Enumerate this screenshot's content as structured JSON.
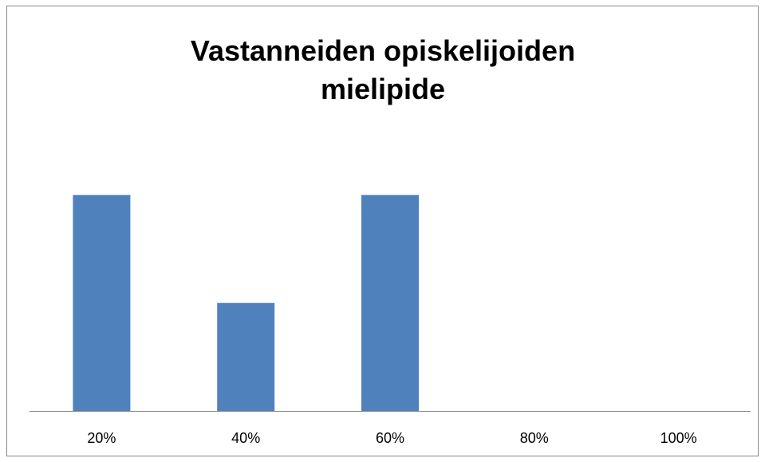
{
  "chart_data": {
    "type": "bar",
    "title": "Vastanneiden opiskelijoiden mielipide",
    "categories": [
      "20%",
      "40%",
      "60%",
      "80%",
      "100%"
    ],
    "values": [
      2,
      1,
      2,
      0,
      0
    ],
    "color": "#4f81bd",
    "ylim": [
      0,
      3
    ]
  }
}
